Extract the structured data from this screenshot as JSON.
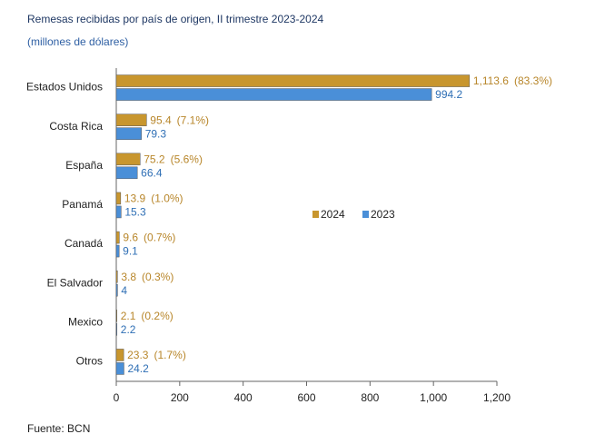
{
  "chart_data": {
    "type": "hbar",
    "title": "Remesas recibidas por país de origen, II trimestre 2023-2024",
    "subtitle": "(millones de dólares)",
    "source": "Fuente: BCN",
    "categories": [
      "Estados Unidos",
      "Costa Rica",
      "España",
      "Panamá",
      "Canadá",
      "El Salvador",
      "Mexico",
      "Otros"
    ],
    "series": [
      {
        "name": "2024",
        "color": "#c8962e",
        "label_color": "#b8862a",
        "values": [
          1113.6,
          95.4,
          75.2,
          13.9,
          9.6,
          3.8,
          2.1,
          23.3
        ],
        "value_labels": [
          "1,113.6",
          "95.4",
          "75.2",
          "13.9",
          "9.6",
          "3.8",
          "2.1",
          "23.3"
        ],
        "share_labels": [
          "(83.3%)",
          "(7.1%)",
          "(5.6%)",
          "(1.0%)",
          "(0.7%)",
          "(0.3%)",
          "(0.2%)",
          "(1.7%)"
        ]
      },
      {
        "name": "2023",
        "color": "#4a8fd8",
        "label_color": "#2f6fb5",
        "values": [
          994.2,
          79.3,
          66.4,
          15.3,
          9.1,
          4.0,
          2.2,
          24.2
        ]
      }
    ],
    "xlim": [
      0,
      1200
    ],
    "xticks": [
      0,
      200,
      400,
      600,
      800,
      {
        "value": 1000,
        "label": "1,000"
      },
      {
        "value": 1200,
        "label": "1,200"
      }
    ],
    "legend": "center"
  }
}
